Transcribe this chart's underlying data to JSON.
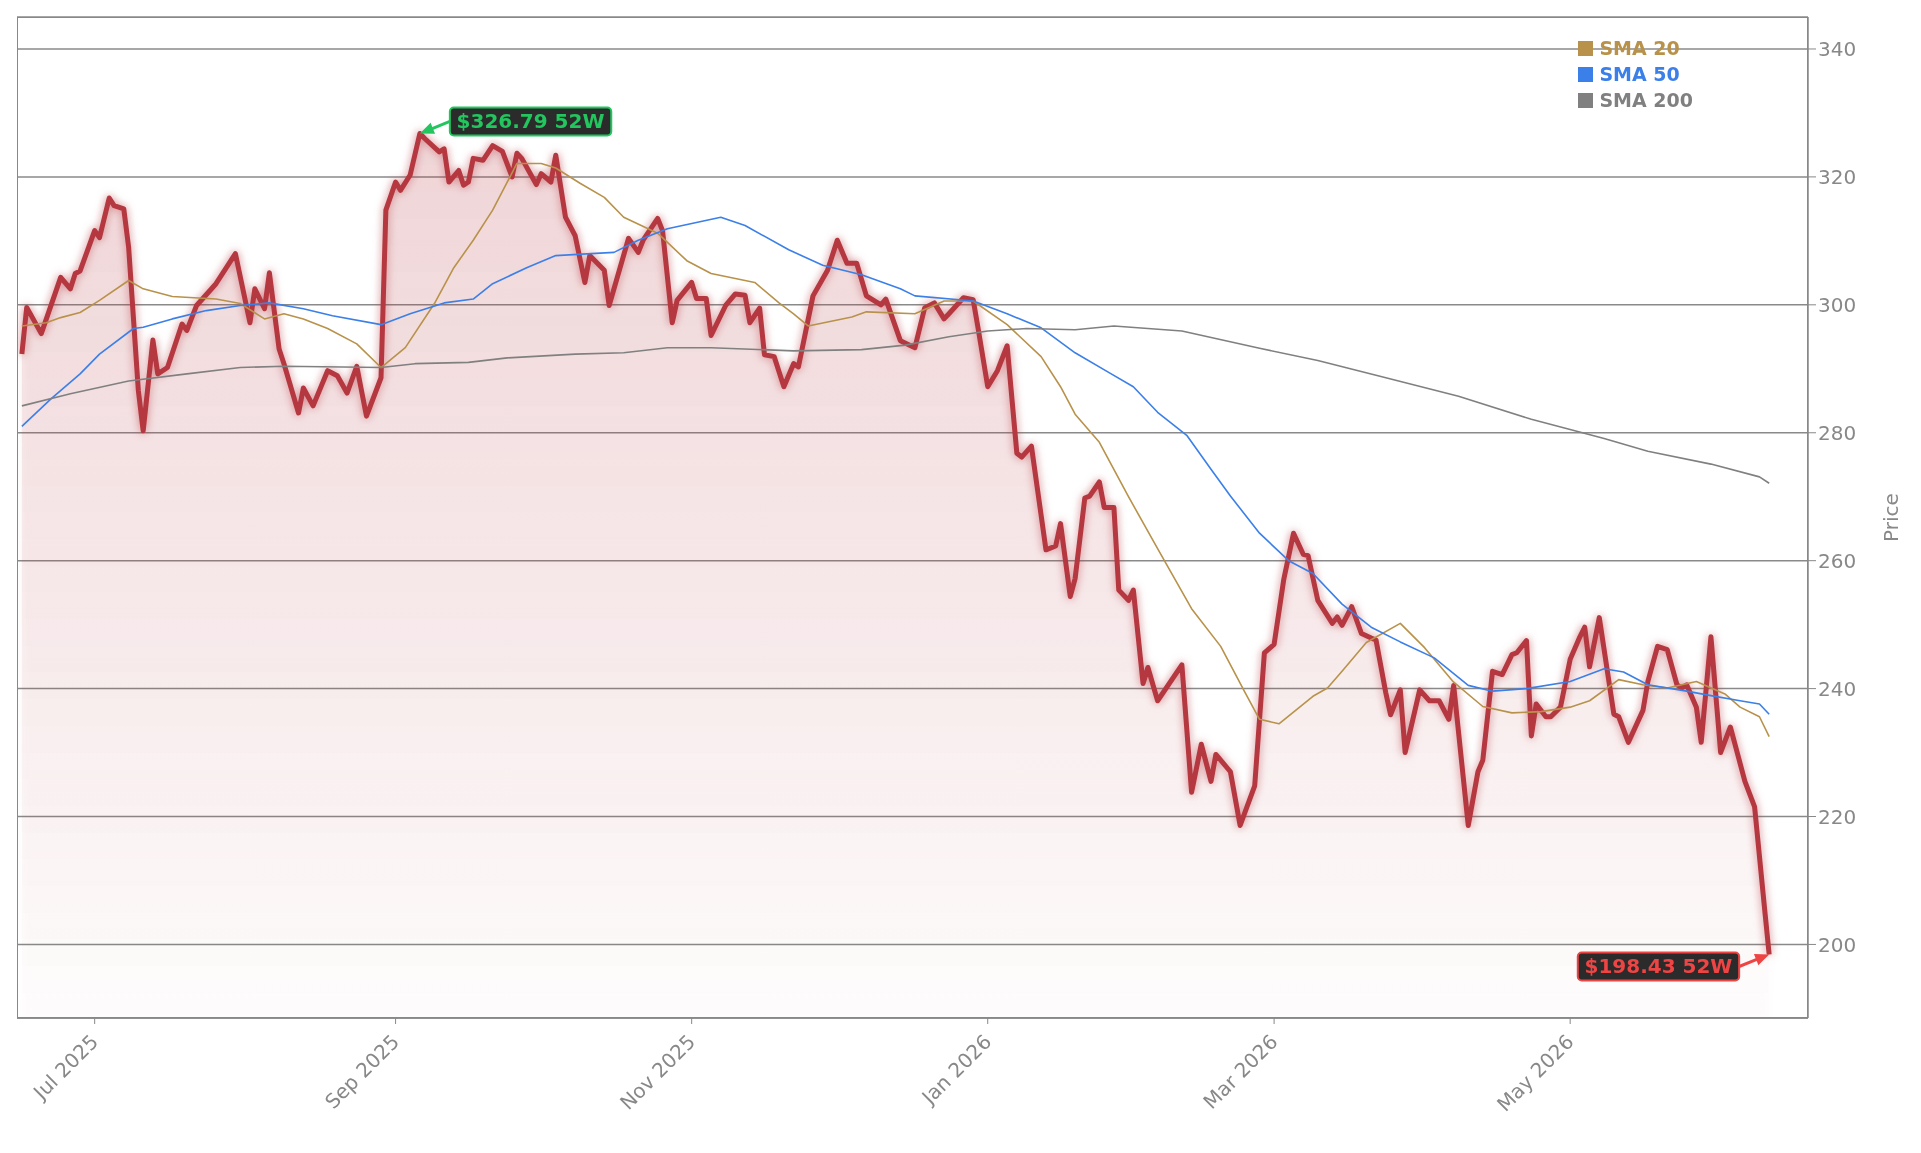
{
  "chart_data": {
    "type": "line",
    "ylabel": "Price",
    "xlim": [
      "2025-06-15",
      "2026-06-19"
    ],
    "ylim": [
      188.5,
      345
    ],
    "xticks": [
      {
        "value": "2025-07-01",
        "label": "Jul 2025"
      },
      {
        "value": "2025-09-01",
        "label": "Sep 2025"
      },
      {
        "value": "2025-11-01",
        "label": "Nov 2025"
      },
      {
        "value": "2026-01-01",
        "label": "Jan 2026"
      },
      {
        "value": "2026-03-01",
        "label": "Mar 2026"
      },
      {
        "value": "2026-05-01",
        "label": "May 2026"
      }
    ],
    "yticks": [
      200,
      220,
      240,
      260,
      280,
      300,
      320,
      340
    ],
    "grid": "y",
    "legend": "top right",
    "annotations": [
      {
        "text": "$326.79 52W",
        "x": "2025-09-06",
        "y": 326.79
      },
      {
        "text": "$198.43 52W",
        "x": "2026-06-11",
        "y": 198.43
      }
    ],
    "series": [
      {
        "type": "area",
        "color": "#b5373f",
        "x": [
          "2025-06-16",
          "2025-06-17",
          "2025-06-20",
          "2025-06-24",
          "2025-06-26",
          "2025-06-27",
          "2025-06-28",
          "2025-07-01",
          "2025-07-02",
          "2025-07-04",
          "2025-07-05",
          "2025-07-07",
          "2025-07-08",
          "2025-07-10",
          "2025-07-11",
          "2025-07-13",
          "2025-07-14",
          "2025-07-16",
          "2025-07-19",
          "2025-07-20",
          "2025-07-22",
          "2025-07-26",
          "2025-07-30",
          "2025-08-02",
          "2025-08-03",
          "2025-08-05",
          "2025-08-06",
          "2025-08-08",
          "2025-08-09",
          "2025-08-12",
          "2025-08-13",
          "2025-08-15",
          "2025-08-18",
          "2025-08-20",
          "2025-08-22",
          "2025-08-24",
          "2025-08-26",
          "2025-08-29",
          "2025-08-30",
          "2025-09-01",
          "2025-09-02",
          "2025-09-04",
          "2025-09-06",
          "2025-09-07",
          "2025-09-10",
          "2025-09-11",
          "2025-09-12",
          "2025-09-14",
          "2025-09-15",
          "2025-09-16",
          "2025-09-17",
          "2025-09-19",
          "2025-09-21",
          "2025-09-23",
          "2025-09-25",
          "2025-09-26",
          "2025-09-27",
          "2025-09-30",
          "2025-10-01",
          "2025-10-03",
          "2025-10-04",
          "2025-10-06",
          "2025-10-08",
          "2025-10-10",
          "2025-10-11",
          "2025-10-14",
          "2025-10-15",
          "2025-10-19",
          "2025-10-21",
          "2025-10-22",
          "2025-10-25",
          "2025-10-26",
          "2025-10-28",
          "2025-10-29",
          "2025-11-01",
          "2025-11-02",
          "2025-11-04",
          "2025-11-05",
          "2025-11-08",
          "2025-11-10",
          "2025-11-12",
          "2025-11-13",
          "2025-11-15",
          "2025-11-16",
          "2025-11-18",
          "2025-11-20",
          "2025-11-22",
          "2025-11-23",
          "2025-11-26",
          "2025-11-29",
          "2025-12-01",
          "2025-12-03",
          "2025-12-05",
          "2025-12-07",
          "2025-12-10",
          "2025-12-11",
          "2025-12-14",
          "2025-12-17",
          "2025-12-19",
          "2025-12-21",
          "2025-12-23",
          "2025-12-24",
          "2025-12-27",
          "2025-12-29",
          "2025-12-30",
          "2026-01-01",
          "2026-01-03",
          "2026-01-05",
          "2026-01-07",
          "2026-01-08",
          "2026-01-10",
          "2026-01-13",
          "2026-01-15",
          "2026-01-16",
          "2026-01-18",
          "2026-01-19",
          "2026-01-21",
          "2026-01-22",
          "2026-01-24",
          "2026-01-25",
          "2026-01-27",
          "2026-01-28",
          "2026-01-30",
          "2026-01-31",
          "2026-02-02",
          "2026-02-03",
          "2026-02-05",
          "2026-02-10",
          "2026-02-12",
          "2026-02-14",
          "2026-02-16",
          "2026-02-17",
          "2026-02-20",
          "2026-02-22",
          "2026-02-25",
          "2026-02-27",
          "2026-03-01",
          "2026-03-03",
          "2026-03-05",
          "2026-03-07",
          "2026-03-08",
          "2026-03-10",
          "2026-03-13",
          "2026-03-14",
          "2026-03-15",
          "2026-03-17",
          "2026-03-19",
          "2026-03-21",
          "2026-03-22",
          "2026-03-24",
          "2026-03-25",
          "2026-03-27",
          "2026-03-28",
          "2026-03-31",
          "2026-04-02",
          "2026-04-04",
          "2026-04-06",
          "2026-04-07",
          "2026-04-10",
          "2026-04-12",
          "2026-04-13",
          "2026-04-15",
          "2026-04-17",
          "2026-04-19",
          "2026-04-20",
          "2026-04-22",
          "2026-04-23",
          "2026-04-24",
          "2026-04-26",
          "2026-04-27",
          "2026-04-29",
          "2026-05-01",
          "2026-05-03",
          "2026-05-04",
          "2026-05-05",
          "2026-05-07",
          "2026-05-10",
          "2026-05-11",
          "2026-05-13",
          "2026-05-16",
          "2026-05-17",
          "2026-05-19",
          "2026-05-21",
          "2026-05-23",
          "2026-05-24",
          "2026-05-25",
          "2026-05-27",
          "2026-05-28",
          "2026-05-30",
          "2026-06-01",
          "2026-06-03",
          "2026-06-06",
          "2026-06-08",
          "2026-06-10",
          "2026-06-11"
        ],
        "values": [
          292.3,
          299.6,
          295.5,
          304.3,
          302.5,
          304.9,
          305.3,
          311.6,
          310.5,
          316.7,
          315.5,
          315,
          309,
          286.6,
          280.3,
          294.5,
          289.2,
          290.2,
          297,
          296,
          299.9,
          303.3,
          308,
          297.2,
          302.5,
          299.4,
          305,
          293.1,
          290.8,
          283.1,
          287,
          284.2,
          289.7,
          288.9,
          286.2,
          290.4,
          282.6,
          288.6,
          314.8,
          319.2,
          317.9,
          320.3,
          326.79,
          326,
          323.9,
          324.4,
          319.2,
          321,
          318.7,
          319.2,
          322.9,
          322.6,
          324.9,
          324,
          320,
          323.7,
          322.9,
          318.8,
          320.5,
          319.2,
          323.4,
          313.7,
          310.8,
          303.5,
          307.7,
          305.4,
          299.9,
          310.4,
          308.2,
          310.1,
          313.5,
          311.6,
          297.2,
          300.7,
          303.5,
          301,
          301,
          295.2,
          299.9,
          301.7,
          301.5,
          297.2,
          299.5,
          292.2,
          291.9,
          287.2,
          290.8,
          290.3,
          301.4,
          305.4,
          310.1,
          306.5,
          306.5,
          301.4,
          300,
          300.9,
          294.4,
          293.3,
          299.5,
          300.3,
          297.8,
          298.6,
          301.1,
          300.8,
          296.4,
          287.2,
          289.7,
          293.6,
          276.8,
          276.2,
          277.9,
          261.7,
          262.3,
          265.8,
          254.4,
          257.2,
          269.8,
          270.1,
          272.3,
          268.3,
          268.3,
          255.4,
          253.8,
          255.4,
          240.8,
          243.3,
          238.1,
          243.7,
          223.8,
          231.3,
          225.5,
          229.7,
          227,
          218.6,
          224.8,
          245.6,
          246.9,
          257.1,
          264.3,
          261,
          260.8,
          253.8,
          250.2,
          251.2,
          249.9,
          252.8,
          248.6,
          247.9,
          247.6,
          239.4,
          235.9,
          239.8,
          230,
          239.8,
          238.1,
          238.1,
          235.2,
          240.5,
          218.6,
          227,
          228.8,
          242.7,
          242.2,
          245.3,
          245.6,
          247.5,
          232.6,
          237.6,
          235.6,
          235.6,
          237.1,
          244.6,
          248.1,
          249.6,
          243.4,
          251.1,
          236,
          235.6,
          231.6,
          236.6,
          241.1,
          246.6,
          246.1,
          240.6,
          240.1,
          240.6,
          237.1,
          231.6,
          248.1,
          230,
          234,
          225.5,
          221.5,
          206,
          198.43
        ]
      },
      {
        "name": "SMA 20",
        "type": "line",
        "color": "#b8924a",
        "x": [
          "2025-06-16",
          "2025-06-21",
          "2025-06-24",
          "2025-06-28",
          "2025-07-02",
          "2025-07-08",
          "2025-07-11",
          "2025-07-17",
          "2025-07-26",
          "2025-07-31",
          "2025-08-05",
          "2025-08-09",
          "2025-08-13",
          "2025-08-18",
          "2025-08-24",
          "2025-08-29",
          "2025-09-03",
          "2025-09-09",
          "2025-09-13",
          "2025-09-17",
          "2025-09-21",
          "2025-09-26",
          "2025-10-01",
          "2025-10-04",
          "2025-10-09",
          "2025-10-14",
          "2025-10-18",
          "2025-10-25",
          "2025-10-31",
          "2025-11-05",
          "2025-11-14",
          "2025-11-19",
          "2025-11-22",
          "2025-11-25",
          "2025-12-04",
          "2025-12-07",
          "2025-12-17",
          "2025-12-23",
          "2025-12-29",
          "2026-01-05",
          "2026-01-12",
          "2026-01-16",
          "2026-01-19",
          "2026-01-24",
          "2026-01-30",
          "2026-02-05",
          "2026-02-12",
          "2026-02-18",
          "2026-02-23",
          "2026-02-26",
          "2026-03-02",
          "2026-03-09",
          "2026-03-12",
          "2026-03-15",
          "2026-03-20",
          "2026-03-27",
          "2026-04-01",
          "2026-04-07",
          "2026-04-13",
          "2026-04-19",
          "2026-04-25",
          "2026-05-01",
          "2026-05-05",
          "2026-05-11",
          "2026-05-16",
          "2026-05-21",
          "2026-05-27",
          "2026-06-02",
          "2026-06-05",
          "2026-06-09",
          "2026-06-11"
        ],
        "values": [
          296.7,
          297.2,
          298,
          298.8,
          300.7,
          303.8,
          302.5,
          301.3,
          300.9,
          300.2,
          297.8,
          298.6,
          297.8,
          296.3,
          293.9,
          290.2,
          293.3,
          300.2,
          305.8,
          310.1,
          314.8,
          322.1,
          322.1,
          321.4,
          319,
          316.8,
          313.7,
          311.2,
          306.9,
          304.9,
          303.5,
          300.3,
          298.6,
          296.7,
          298.1,
          298.9,
          298.6,
          300.6,
          300.6,
          296.9,
          291.9,
          287.2,
          282.9,
          278.5,
          270,
          261.9,
          252.5,
          246.6,
          239.4,
          235.2,
          234.5,
          238.8,
          240.1,
          242.7,
          247.2,
          250.2,
          246.4,
          241,
          237.2,
          236.2,
          236.4,
          237.1,
          238.1,
          241.4,
          240.6,
          240.1,
          241.1,
          239.1,
          237.1,
          235.6,
          232.5
        ]
      },
      {
        "name": "SMA 50",
        "type": "line",
        "color": "#3b7fe8",
        "x": [
          "2025-06-16",
          "2025-06-22",
          "2025-06-28",
          "2025-07-02",
          "2025-07-09",
          "2025-07-11",
          "2025-07-17",
          "2025-07-24",
          "2025-07-31",
          "2025-08-06",
          "2025-08-13",
          "2025-08-19",
          "2025-08-29",
          "2025-09-04",
          "2025-09-11",
          "2025-09-17",
          "2025-09-21",
          "2025-09-28",
          "2025-10-04",
          "2025-10-16",
          "2025-10-21",
          "2025-10-27",
          "2025-11-07",
          "2025-11-12",
          "2025-11-21",
          "2025-11-28",
          "2025-12-06",
          "2025-12-14",
          "2025-12-17",
          "2025-12-29",
          "2026-01-05",
          "2026-01-12",
          "2026-01-19",
          "2026-01-26",
          "2026-01-31",
          "2026-02-05",
          "2026-02-11",
          "2026-02-16",
          "2026-02-20",
          "2026-02-26",
          "2026-03-04",
          "2026-03-09",
          "2026-03-15",
          "2026-03-21",
          "2026-03-27",
          "2026-04-03",
          "2026-04-10",
          "2026-04-15",
          "2026-04-22",
          "2026-05-01",
          "2026-05-08",
          "2026-05-12",
          "2026-05-17",
          "2026-05-25",
          "2026-05-30",
          "2026-06-05",
          "2026-06-09",
          "2026-06-11"
        ],
        "values": [
          281,
          285.3,
          289.2,
          292.3,
          296.3,
          296.5,
          297.8,
          299.1,
          299.9,
          300.3,
          299.4,
          298.3,
          296.9,
          298.6,
          300.3,
          300.9,
          303.3,
          305.8,
          307.7,
          308.2,
          310.1,
          311.9,
          313.7,
          312.4,
          308.6,
          306.2,
          304.7,
          302.5,
          301.4,
          300.6,
          298.6,
          296.4,
          292.5,
          289.4,
          287.2,
          283.2,
          279.6,
          274.3,
          270.1,
          264.3,
          260,
          258,
          253.2,
          249.6,
          247.3,
          244.8,
          240.5,
          239.6,
          240,
          241.1,
          243.1,
          242.6,
          240.6,
          239.6,
          238.9,
          238.1,
          237.6,
          236
        ]
      },
      {
        "name": "SMA 200",
        "type": "line",
        "color": "#808080",
        "x": [
          "2025-06-16",
          "2025-06-26",
          "2025-07-08",
          "2025-07-20",
          "2025-07-31",
          "2025-08-09",
          "2025-08-29",
          "2025-09-05",
          "2025-09-16",
          "2025-09-24",
          "2025-10-08",
          "2025-10-18",
          "2025-10-27",
          "2025-11-05",
          "2025-11-22",
          "2025-12-06",
          "2025-12-15",
          "2025-12-24",
          "2026-01-01",
          "2026-01-09",
          "2026-01-19",
          "2026-01-27",
          "2026-02-10",
          "2026-02-26",
          "2026-03-10",
          "2026-03-22",
          "2026-04-08",
          "2026-04-23",
          "2026-05-08",
          "2026-05-17",
          "2026-05-30",
          "2026-06-09",
          "2026-06-11"
        ],
        "values": [
          284.2,
          286.1,
          288.1,
          289.2,
          290.2,
          290.4,
          290.2,
          290.8,
          291,
          291.7,
          292.3,
          292.5,
          293.3,
          293.3,
          292.8,
          293,
          293.7,
          295,
          295.9,
          296.3,
          296.1,
          296.7,
          295.9,
          293.2,
          291.3,
          289,
          285.7,
          282.1,
          279.1,
          277.1,
          275.1,
          273.1,
          272.1
        ]
      }
    ]
  }
}
